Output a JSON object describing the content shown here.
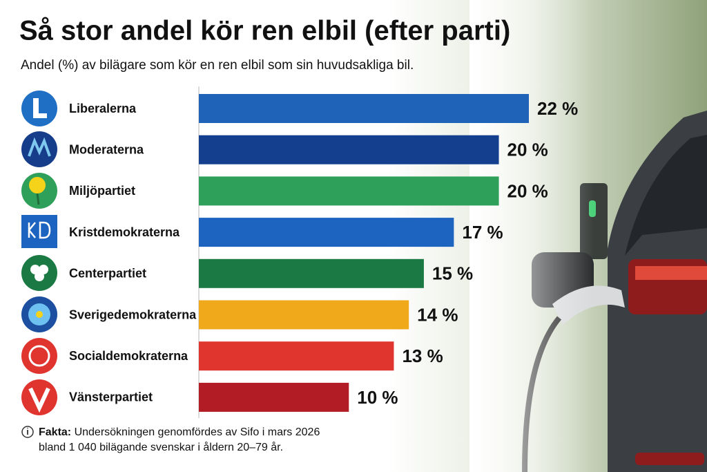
{
  "chart_data": {
    "type": "bar",
    "orientation": "horizontal",
    "title": "Så stor andel kör ren elbil (efter parti)",
    "subtitle": "Andel (%) av bilägare som kör en ren elbil som sin huvudsakliga bil.",
    "categories": [
      "Liberalerna",
      "Moderaterna",
      "Miljöpartiet",
      "Kristdemokraterna",
      "Centerpartiet",
      "Sverigedemokraterna",
      "Socialdemokraterna",
      "Vänsterpartiet"
    ],
    "values": [
      22,
      20,
      20,
      17,
      15,
      14,
      13,
      10
    ],
    "value_labels": [
      "22 %",
      "20 %",
      "20 %",
      "17 %",
      "15 %",
      "14 %",
      "13 %",
      "10 %"
    ],
    "colors": [
      "#1f63b8",
      "#143f8e",
      "#2fa05a",
      "#1d63c0",
      "#1b7a43",
      "#f0a91a",
      "#e0342f",
      "#b21c24"
    ],
    "note": {
      "label": "Fakta:",
      "lines": [
        "Undersökningen genomfördes av Sifo i mars 2026",
        "bland 1 040 bilägande svenskar i åldern 20–79 år."
      ]
    }
  }
}
